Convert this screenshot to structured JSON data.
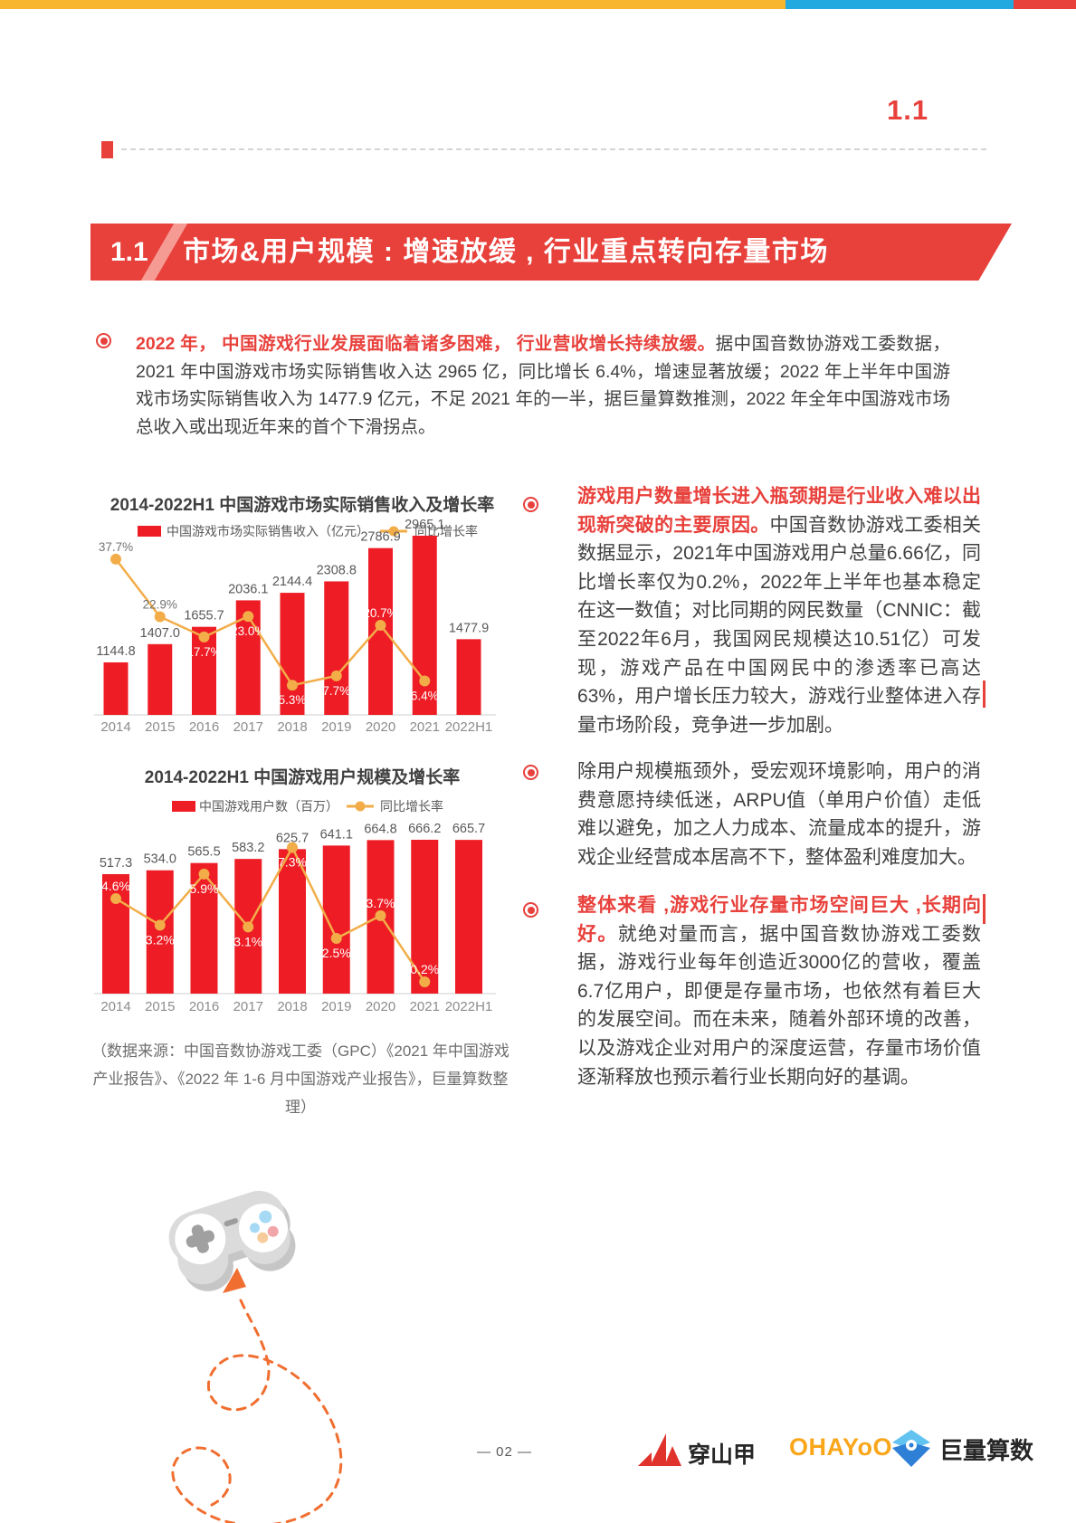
{
  "page": {
    "corner_label": "1.1"
  },
  "banner": {
    "number": "1.1",
    "title": "市场&用户规模 : 增速放缓 , 行业重点转向存量市场"
  },
  "intro": {
    "highlight": "2022 年， 中国游戏行业发展面临着诸多困难， 行业营收增长持续放缓。",
    "body": "据中国音数协游戏工委数据，2021 年中国游戏市场实际销售收入达 2965 亿，同比增长 6.4%，增速显著放缓；2022 年上半年中国游戏市场实际销售收入为 1477.9 亿元，不足 2021 年的一半，据巨量算数推测，2022 年全年中国游戏市场总收入或出现近年来的首个下滑拐点。"
  },
  "right_column": {
    "paragraphs": [
      {
        "highlight": "游戏用户数量增长进入瓶颈期是行业收入难以出现新突破的主要原因。",
        "body": "中国音数协游戏工委相关数据显示，2021年中国游戏用户总量6.66亿，同比增长率仅为0.2%，2022年上半年也基本稳定在这一数值；对比同期的网民数量（CNNIC：截至2022年6月，我国网民规模达10.51亿）可发现，游戏产品在中国网民中的渗透率已高达63%，用户增长压力较大，游戏行业整体进入存量市场阶段，竞争进一步加剧。"
      },
      {
        "highlight": "",
        "body": "除用户规模瓶颈外，受宏观环境影响，用户的消费意愿持续低迷，ARPU值（单用户价值）走低难以避免，加之人力成本、流量成本的提升，游戏企业经营成本居高不下，整体盈利难度加大。"
      },
      {
        "highlight": "整体来看 ,游戏行业存量市场空间巨大 ,长期向好。",
        "body": "就绝对量而言，据中国音数协游戏工委数据，游戏行业每年创造近3000亿的营收，覆盖6.7亿用户，即便是存量市场，也依然有着巨大的发展空间。而在未来，随着外部环境的改善，以及游戏企业对用户的深度运营，存量市场价值逐渐释放也预示着行业长期向好的基调。"
      }
    ]
  },
  "source_note": "（数据来源：中国音数协游戏工委（GPC）《2021 年中国游戏产业报告》、《2022 年 1-6 月中国游戏产业报告》，巨量算数整理）",
  "footer": {
    "page_number": "— 02 —",
    "logos": [
      {
        "label": "穿山甲"
      },
      {
        "label": "OHAYoO"
      },
      {
        "label": "巨量算数"
      }
    ]
  },
  "colors": {
    "accent_red": "#E8413C",
    "banner_red": "#E8403A",
    "bar_red": "#EE1C25",
    "line_orange": "#F2AD49",
    "topbar_yellow": "#F7B62E",
    "topbar_blue": "#22A9E0",
    "topbar_red": "#E8413C",
    "text_dark": "#404040",
    "text_gray": "#737373",
    "axis_gray": "#DFDFDF"
  },
  "chart_data": [
    {
      "type": "bar",
      "title": "2014-2022H1 中国游戏市场实际销售收入及增长率",
      "categories": [
        "2014",
        "2015",
        "2016",
        "2017",
        "2018",
        "2019",
        "2020",
        "2021",
        "2022H1"
      ],
      "series": [
        {
          "name": "中国游戏市场实际销售收入（亿元）",
          "type": "bar",
          "values": [
            1144.8,
            1407.0,
            1655.7,
            2036.1,
            2144.4,
            2308.8,
            2786.9,
            2965.1,
            1477.9
          ]
        },
        {
          "name": "同比增长率",
          "type": "line",
          "values": [
            37.7,
            22.9,
            17.7,
            23.0,
            5.3,
            7.7,
            20.7,
            6.4,
            null
          ],
          "point_labels": [
            "37.7%",
            "22.9%",
            "17.7%",
            "23.0%",
            "5.3%",
            "7.7%",
            "20.7%",
            "6.4%",
            null
          ],
          "label_placement": [
            "above",
            "above",
            "below",
            "below",
            "below",
            "below",
            "above",
            "below",
            null
          ],
          "label_colors": [
            "#737373",
            "#737373",
            "#FFFFFF",
            "#FFFFFF",
            "#FFFFFF",
            "#FFFFFF",
            "#FFFFFF",
            "#FFFFFF",
            null
          ]
        }
      ],
      "legend_position": "top",
      "grid": false,
      "ylabel": "",
      "xlabel": ""
    },
    {
      "type": "bar",
      "title": "2014-2022H1 中国游戏用户规模及增长率",
      "categories": [
        "2014",
        "2015",
        "2016",
        "2017",
        "2018",
        "2019",
        "2020",
        "2021",
        "2022H1"
      ],
      "series": [
        {
          "name": "中国游戏用户数（百万）",
          "type": "bar",
          "values": [
            517.3,
            534.0,
            565.5,
            583.2,
            625.7,
            641.1,
            664.8,
            666.2,
            665.7
          ]
        },
        {
          "name": "同比增长率",
          "type": "line",
          "values": [
            4.6,
            3.2,
            5.9,
            3.1,
            7.3,
            2.5,
            3.7,
            0.2,
            null
          ],
          "point_labels": [
            "4.6%",
            "3.2%",
            "5.9%",
            "3.1%",
            "7.3%",
            "2.5%",
            "3.7%",
            "0.2%",
            null
          ],
          "label_placement": [
            "above",
            "below",
            "below",
            "below",
            "below",
            "below",
            "above",
            "above",
            null
          ],
          "label_colors": [
            "#FFFFFF",
            "#FFFFFF",
            "#FFFFFF",
            "#FFFFFF",
            "#FFFFFF",
            "#FFFFFF",
            "#FFFFFF",
            "#FFFFFF",
            null
          ]
        }
      ],
      "legend_position": "top",
      "grid": false,
      "ylabel": "",
      "xlabel": ""
    }
  ]
}
